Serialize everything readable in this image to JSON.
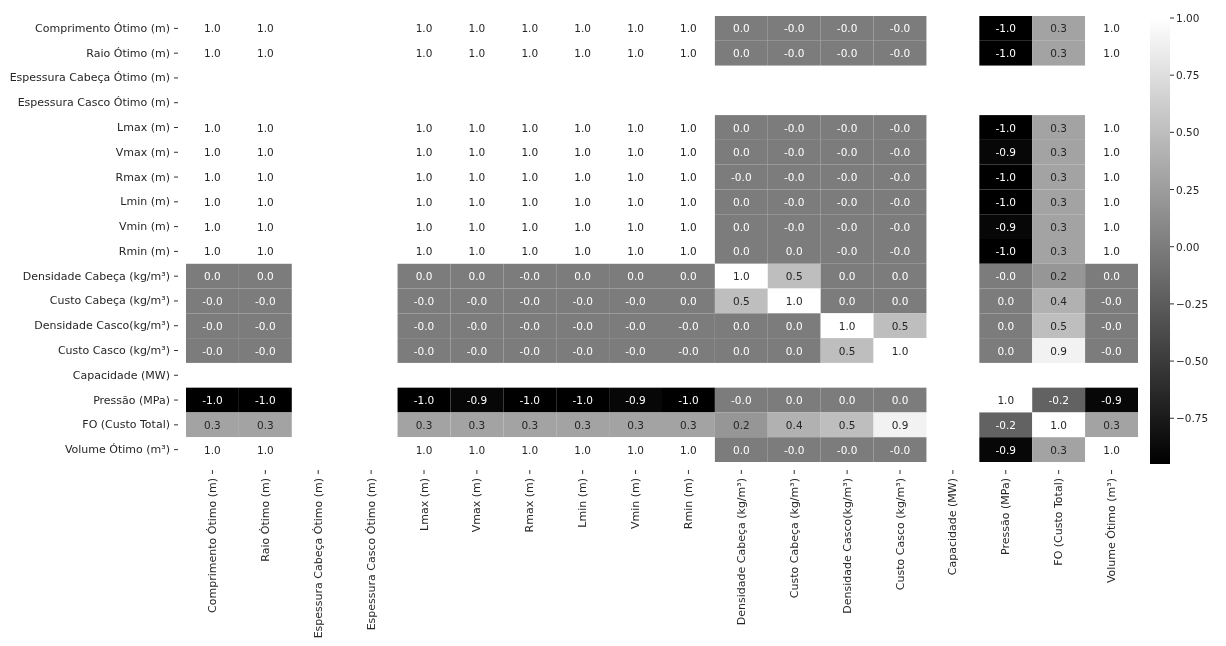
{
  "chart_data": {
    "type": "heatmap",
    "categories": [
      "Comprimento Ótimo (m)",
      "Raio Ótimo (m)",
      "Espessura Cabeça Ótimo (m)",
      "Espessura Casco Ótimo (m)",
      "Lmax (m)",
      "Vmax (m)",
      "Rmax (m)",
      "Lmin (m)",
      "Vmin (m)",
      "Rmin (m)",
      "Densidade Cabeça (kg/m³)",
      "Custo Cabeça (kg/m³)",
      "Densidade Casco(kg/m³)",
      "Custo Casco (kg/m³)",
      "Capacidade (MW)",
      "Pressão (MPa)",
      "FO (Custo Total)",
      "Volume Ótimo (m³)"
    ],
    "y_categories": [
      "Comprimento Ótimo (m)",
      "Raio Ótimo (m)",
      "Espessura Cabeça Ótimo (m)",
      "Espessura Casco Ótimo (m)",
      "Lmax (m)",
      "Vmax (m)",
      "Rmax (m)",
      "Lmin (m)",
      "Vmin (m)",
      "Rmin (m)",
      "Densidade Cabeça (kg/m³)",
      "Custo Cabeça (kg/m³)",
      "Densidade Casco(kg/m³)",
      "Custo Casco (kg/m³)",
      "Capacidade (MW)",
      "Pressão (MPa)",
      "FO (Custo Total)",
      "Volume Ótimo (m³)"
    ],
    "cells": [
      [
        1.0,
        1.0,
        null,
        null,
        1.0,
        1.0,
        1.0,
        1.0,
        1.0,
        1.0,
        0.0,
        0.0,
        0.0,
        0.0,
        null,
        -1.0,
        0.3,
        1.0
      ],
      [
        1.0,
        1.0,
        null,
        null,
        1.0,
        1.0,
        1.0,
        1.0,
        1.0,
        1.0,
        0.0,
        0.0,
        0.0,
        0.0,
        null,
        -1.0,
        0.3,
        1.0
      ],
      [
        null,
        null,
        null,
        null,
        null,
        null,
        null,
        null,
        null,
        null,
        null,
        null,
        null,
        null,
        null,
        null,
        null,
        null
      ],
      [
        null,
        null,
        null,
        null,
        null,
        null,
        null,
        null,
        null,
        null,
        null,
        null,
        null,
        null,
        null,
        null,
        null,
        null
      ],
      [
        1.0,
        1.0,
        null,
        null,
        1.0,
        1.0,
        1.0,
        1.0,
        1.0,
        1.0,
        0.0,
        0.0,
        0.0,
        0.0,
        null,
        -1.0,
        0.3,
        1.0
      ],
      [
        1.0,
        1.0,
        null,
        null,
        1.0,
        1.0,
        1.0,
        1.0,
        1.0,
        1.0,
        0.0,
        0.0,
        0.0,
        0.0,
        null,
        -0.9,
        0.3,
        1.0
      ],
      [
        1.0,
        1.0,
        null,
        null,
        1.0,
        1.0,
        1.0,
        1.0,
        1.0,
        1.0,
        0.0,
        0.0,
        0.0,
        0.0,
        null,
        -1.0,
        0.3,
        1.0
      ],
      [
        1.0,
        1.0,
        null,
        null,
        1.0,
        1.0,
        1.0,
        1.0,
        1.0,
        1.0,
        0.0,
        0.0,
        0.0,
        0.0,
        null,
        -1.0,
        0.3,
        1.0
      ],
      [
        1.0,
        1.0,
        null,
        null,
        1.0,
        1.0,
        1.0,
        1.0,
        1.0,
        1.0,
        0.0,
        0.0,
        0.0,
        0.0,
        null,
        -0.9,
        0.3,
        1.0
      ],
      [
        1.0,
        1.0,
        null,
        null,
        1.0,
        1.0,
        1.0,
        1.0,
        1.0,
        1.0,
        0.0,
        0.0,
        0.0,
        0.0,
        null,
        -1.0,
        0.3,
        1.0
      ],
      [
        0.0,
        0.0,
        null,
        null,
        0.0,
        0.0,
        0.0,
        0.0,
        0.0,
        0.0,
        1.0,
        0.5,
        0.0,
        0.0,
        null,
        0.0,
        0.2,
        0.0
      ],
      [
        0.0,
        0.0,
        null,
        null,
        0.0,
        0.0,
        0.0,
        0.0,
        0.0,
        0.0,
        0.5,
        1.0,
        0.0,
        0.0,
        null,
        0.0,
        0.4,
        0.0
      ],
      [
        0.0,
        0.0,
        null,
        null,
        0.0,
        0.0,
        0.0,
        0.0,
        0.0,
        0.0,
        0.0,
        0.0,
        1.0,
        0.5,
        null,
        0.0,
        0.5,
        0.0
      ],
      [
        0.0,
        0.0,
        null,
        null,
        0.0,
        0.0,
        0.0,
        0.0,
        0.0,
        0.0,
        0.0,
        0.0,
        0.5,
        1.0,
        null,
        0.0,
        0.9,
        0.0
      ],
      [
        null,
        null,
        null,
        null,
        null,
        null,
        null,
        null,
        null,
        null,
        null,
        null,
        null,
        null,
        null,
        null,
        null,
        null
      ],
      [
        -1.0,
        -1.0,
        null,
        null,
        -1.0,
        -0.9,
        -1.0,
        -1.0,
        -0.9,
        -1.0,
        0.0,
        0.0,
        0.0,
        0.0,
        null,
        1.0,
        -0.2,
        -0.9
      ],
      [
        0.3,
        0.3,
        null,
        null,
        0.3,
        0.3,
        0.3,
        0.3,
        0.3,
        0.3,
        0.2,
        0.4,
        0.5,
        0.9,
        null,
        -0.2,
        1.0,
        0.3
      ],
      [
        1.0,
        1.0,
        null,
        null,
        1.0,
        1.0,
        1.0,
        1.0,
        1.0,
        1.0,
        0.0,
        0.0,
        0.0,
        0.0,
        null,
        -0.9,
        0.3,
        1.0
      ]
    ],
    "cell_labels": [
      [
        "1.0",
        "1.0",
        null,
        null,
        "1.0",
        "1.0",
        "1.0",
        "1.0",
        "1.0",
        "1.0",
        "0.0",
        "-0.0",
        "-0.0",
        "-0.0",
        null,
        "-1.0",
        "0.3",
        "1.0"
      ],
      [
        "1.0",
        "1.0",
        null,
        null,
        "1.0",
        "1.0",
        "1.0",
        "1.0",
        "1.0",
        "1.0",
        "0.0",
        "-0.0",
        "-0.0",
        "-0.0",
        null,
        "-1.0",
        "0.3",
        "1.0"
      ],
      [
        null,
        null,
        null,
        null,
        null,
        null,
        null,
        null,
        null,
        null,
        null,
        null,
        null,
        null,
        null,
        null,
        null,
        null
      ],
      [
        null,
        null,
        null,
        null,
        null,
        null,
        null,
        null,
        null,
        null,
        null,
        null,
        null,
        null,
        null,
        null,
        null,
        null
      ],
      [
        "1.0",
        "1.0",
        null,
        null,
        "1.0",
        "1.0",
        "1.0",
        "1.0",
        "1.0",
        "1.0",
        "0.0",
        "-0.0",
        "-0.0",
        "-0.0",
        null,
        "-1.0",
        "0.3",
        "1.0"
      ],
      [
        "1.0",
        "1.0",
        null,
        null,
        "1.0",
        "1.0",
        "1.0",
        "1.0",
        "1.0",
        "1.0",
        "0.0",
        "-0.0",
        "-0.0",
        "-0.0",
        null,
        "-0.9",
        "0.3",
        "1.0"
      ],
      [
        "1.0",
        "1.0",
        null,
        null,
        "1.0",
        "1.0",
        "1.0",
        "1.0",
        "1.0",
        "1.0",
        "-0.0",
        "-0.0",
        "-0.0",
        "-0.0",
        null,
        "-1.0",
        "0.3",
        "1.0"
      ],
      [
        "1.0",
        "1.0",
        null,
        null,
        "1.0",
        "1.0",
        "1.0",
        "1.0",
        "1.0",
        "1.0",
        "0.0",
        "-0.0",
        "-0.0",
        "-0.0",
        null,
        "-1.0",
        "0.3",
        "1.0"
      ],
      [
        "1.0",
        "1.0",
        null,
        null,
        "1.0",
        "1.0",
        "1.0",
        "1.0",
        "1.0",
        "1.0",
        "0.0",
        "-0.0",
        "-0.0",
        "-0.0",
        null,
        "-0.9",
        "0.3",
        "1.0"
      ],
      [
        "1.0",
        "1.0",
        null,
        null,
        "1.0",
        "1.0",
        "1.0",
        "1.0",
        "1.0",
        "1.0",
        "0.0",
        "0.0",
        "-0.0",
        "-0.0",
        null,
        "-1.0",
        "0.3",
        "1.0"
      ],
      [
        "0.0",
        "0.0",
        null,
        null,
        "0.0",
        "0.0",
        "-0.0",
        "0.0",
        "0.0",
        "0.0",
        "1.0",
        "0.5",
        "0.0",
        "0.0",
        null,
        "-0.0",
        "0.2",
        "0.0"
      ],
      [
        "-0.0",
        "-0.0",
        null,
        null,
        "-0.0",
        "-0.0",
        "-0.0",
        "-0.0",
        "-0.0",
        "0.0",
        "0.5",
        "1.0",
        "0.0",
        "0.0",
        null,
        "0.0",
        "0.4",
        "-0.0"
      ],
      [
        "-0.0",
        "-0.0",
        null,
        null,
        "-0.0",
        "-0.0",
        "-0.0",
        "-0.0",
        "-0.0",
        "-0.0",
        "0.0",
        "0.0",
        "1.0",
        "0.5",
        null,
        "0.0",
        "0.5",
        "-0.0"
      ],
      [
        "-0.0",
        "-0.0",
        null,
        null,
        "-0.0",
        "-0.0",
        "-0.0",
        "-0.0",
        "-0.0",
        "-0.0",
        "0.0",
        "0.0",
        "0.5",
        "1.0",
        null,
        "0.0",
        "0.9",
        "-0.0"
      ],
      [
        null,
        null,
        null,
        null,
        null,
        null,
        null,
        null,
        null,
        null,
        null,
        null,
        null,
        null,
        null,
        null,
        null,
        null
      ],
      [
        "-1.0",
        "-1.0",
        null,
        null,
        "-1.0",
        "-0.9",
        "-1.0",
        "-1.0",
        "-0.9",
        "-1.0",
        "-0.0",
        "0.0",
        "0.0",
        "0.0",
        null,
        "1.0",
        "-0.2",
        "-0.9"
      ],
      [
        "0.3",
        "0.3",
        null,
        null,
        "0.3",
        "0.3",
        "0.3",
        "0.3",
        "0.3",
        "0.3",
        "0.2",
        "0.4",
        "0.5",
        "0.9",
        null,
        "-0.2",
        "1.0",
        "0.3"
      ],
      [
        "1.0",
        "1.0",
        null,
        null,
        "1.0",
        "1.0",
        "1.0",
        "1.0",
        "1.0",
        "1.0",
        "0.0",
        "-0.0",
        "-0.0",
        "-0.0",
        null,
        "-0.9",
        "0.3",
        "1.0"
      ]
    ],
    "clim": [
      -0.95,
      1.0
    ],
    "cticks": [
      {
        "value": 1.0,
        "label": "1.00"
      },
      {
        "value": 0.75,
        "label": "0.75"
      },
      {
        "value": 0.5,
        "label": "0.50"
      },
      {
        "value": 0.25,
        "label": "0.25"
      },
      {
        "value": 0.0,
        "label": "0.00"
      },
      {
        "value": -0.25,
        "label": "−0.25"
      },
      {
        "value": -0.5,
        "label": "−0.50"
      },
      {
        "value": -0.75,
        "label": "−0.75"
      }
    ]
  }
}
